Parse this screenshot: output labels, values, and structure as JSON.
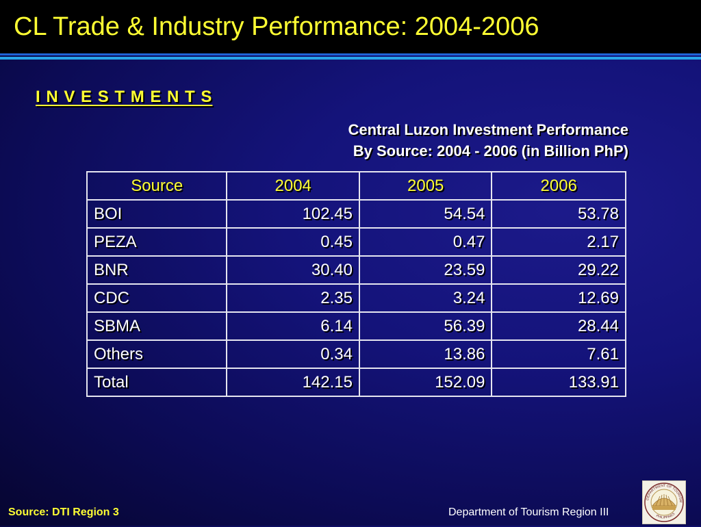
{
  "slide": {
    "title": "CL Trade & Industry Performance: 2004-2006",
    "section_heading": "I N V E S T M E N T S",
    "subtitle_line1": "Central Luzon Investment Performance",
    "subtitle_line2": "By Source:  2004 - 2006 (in Billion PhP)"
  },
  "table": {
    "headers": [
      "Source",
      "2004",
      "2005",
      "2006"
    ],
    "rows": [
      [
        "BOI",
        "102.45",
        "54.54",
        "53.78"
      ],
      [
        "PEZA",
        "0.45",
        "0.47",
        "2.17"
      ],
      [
        "BNR",
        "30.40",
        "23.59",
        "29.22"
      ],
      [
        "CDC",
        "2.35",
        "3.24",
        "12.69"
      ],
      [
        "SBMA",
        "6.14",
        "56.39",
        "28.44"
      ],
      [
        "Others",
        "0.34",
        "13.86",
        "7.61"
      ],
      [
        "Total",
        "142.15",
        "152.09",
        "133.91"
      ]
    ]
  },
  "footer": {
    "source_note": "Source: DTI Region 3",
    "organization": "Department of Tourism Region III",
    "logo_text": "DEPARTMENT OF TOURISM · PHILIPPINES",
    "logo_icon": "department-of-tourism-seal"
  },
  "colors": {
    "title": "#ffff33",
    "background": "#14137a",
    "accent_rule": "#27a4e8",
    "table_border": "#e6e6f0"
  }
}
